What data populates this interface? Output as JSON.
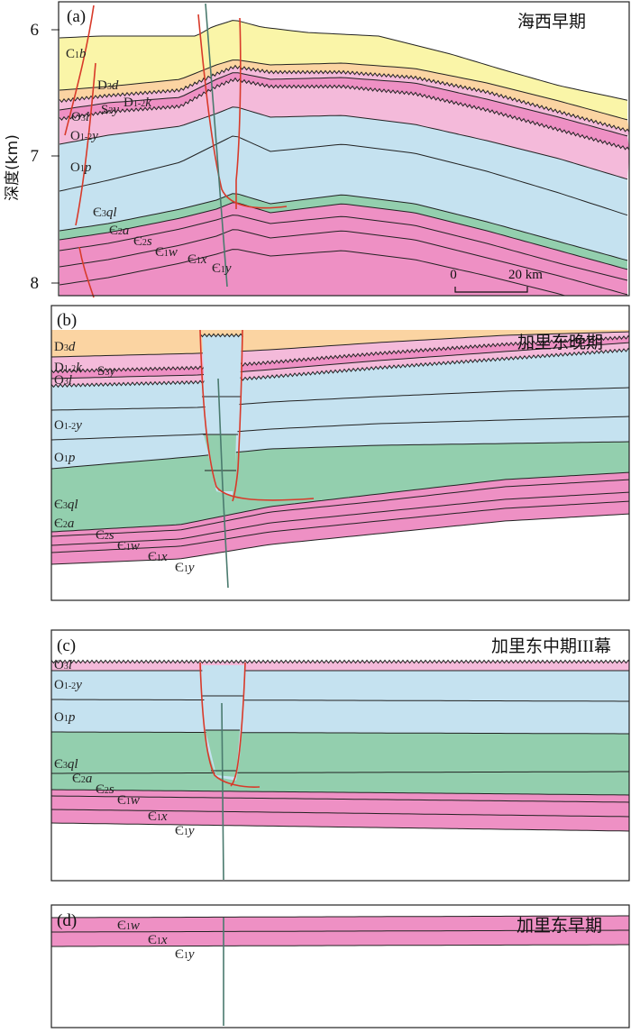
{
  "axis": {
    "title": "深度(km)",
    "ticks": [
      "6",
      "7",
      "8"
    ]
  },
  "scale_bar": {
    "zero": "0",
    "label": "20 km"
  },
  "colors": {
    "C1b": "#faf5a8",
    "D3d": "#fbd4a2",
    "D1-2k_S3y": "#f4bada",
    "pink": "#ee90c4",
    "O3l": "#f4bada",
    "blue": "#c5e2f0",
    "green": "#93cfae",
    "fault": "#d83a2a",
    "well": "#4a7a6e"
  },
  "panels": [
    {
      "tag": "(a)",
      "period": "海西早期",
      "labels": {
        "C1b": {
          "base": "C",
          "sub": "1",
          "sym": "b"
        },
        "D3d": {
          "base": "D",
          "sub": "3",
          "sym": "d"
        },
        "D12k": {
          "base": "D",
          "sub": "1-2",
          "sym": "k"
        },
        "S3y": {
          "base": "S",
          "sub": "3",
          "sym": "y"
        },
        "O3l": {
          "base": "O",
          "sub": "3",
          "sym": "l"
        },
        "O12y": {
          "base": "O",
          "sub": "1-2",
          "sym": "y"
        },
        "O1p": {
          "base": "O",
          "sub": "1",
          "sym": "p"
        },
        "E3ql": {
          "base": "Є",
          "sub": "3",
          "sym": "ql"
        },
        "E2a": {
          "base": "Є",
          "sub": "2",
          "sym": "a"
        },
        "E2s": {
          "base": "Є",
          "sub": "2",
          "sym": "s"
        },
        "E1w": {
          "base": "Є",
          "sub": "1",
          "sym": "w"
        },
        "E1x": {
          "base": "Є",
          "sub": "1",
          "sym": "x"
        },
        "E1y": {
          "base": "Є",
          "sub": "1",
          "sym": "y"
        }
      }
    },
    {
      "tag": "(b)",
      "period": "加里东晚期",
      "labels": {
        "D3d": {
          "base": "D",
          "sub": "3",
          "sym": "d"
        },
        "D12k": {
          "base": "D",
          "sub": "1-2",
          "sym": "k"
        },
        "S3y": {
          "base": "S",
          "sub": "3",
          "sym": "y"
        },
        "O3l": {
          "base": "O",
          "sub": "3",
          "sym": "l"
        },
        "O12y": {
          "base": "O",
          "sub": "1-2",
          "sym": "y"
        },
        "O1p": {
          "base": "O",
          "sub": "1",
          "sym": "p"
        },
        "E3ql": {
          "base": "Є",
          "sub": "3",
          "sym": "ql"
        },
        "E2a": {
          "base": "Є",
          "sub": "2",
          "sym": "a"
        },
        "E2s": {
          "base": "Є",
          "sub": "2",
          "sym": "s"
        },
        "E1w": {
          "base": "Є",
          "sub": "1",
          "sym": "w"
        },
        "E1x": {
          "base": "Є",
          "sub": "1",
          "sym": "x"
        },
        "E1y": {
          "base": "Є",
          "sub": "1",
          "sym": "y"
        }
      }
    },
    {
      "tag": "(c)",
      "period": "加里东中期III幕",
      "labels": {
        "O3l": {
          "base": "O",
          "sub": "3",
          "sym": "l"
        },
        "O12y": {
          "base": "O",
          "sub": "1-2",
          "sym": "y"
        },
        "O1p": {
          "base": "O",
          "sub": "1",
          "sym": "p"
        },
        "E3ql": {
          "base": "Є",
          "sub": "3",
          "sym": "ql"
        },
        "E2a": {
          "base": "Є",
          "sub": "2",
          "sym": "a"
        },
        "E2s": {
          "base": "Є",
          "sub": "2",
          "sym": "s"
        },
        "E1w": {
          "base": "Є",
          "sub": "1",
          "sym": "w"
        },
        "E1x": {
          "base": "Є",
          "sub": "1",
          "sym": "x"
        },
        "E1y": {
          "base": "Є",
          "sub": "1",
          "sym": "y"
        }
      }
    },
    {
      "tag": "(d)",
      "period": "加里东早期",
      "labels": {
        "E1w": {
          "base": "Є",
          "sub": "1",
          "sym": "w"
        },
        "E1x": {
          "base": "Є",
          "sub": "1",
          "sym": "x"
        },
        "E1y": {
          "base": "Є",
          "sub": "1",
          "sym": "y"
        }
      }
    }
  ]
}
